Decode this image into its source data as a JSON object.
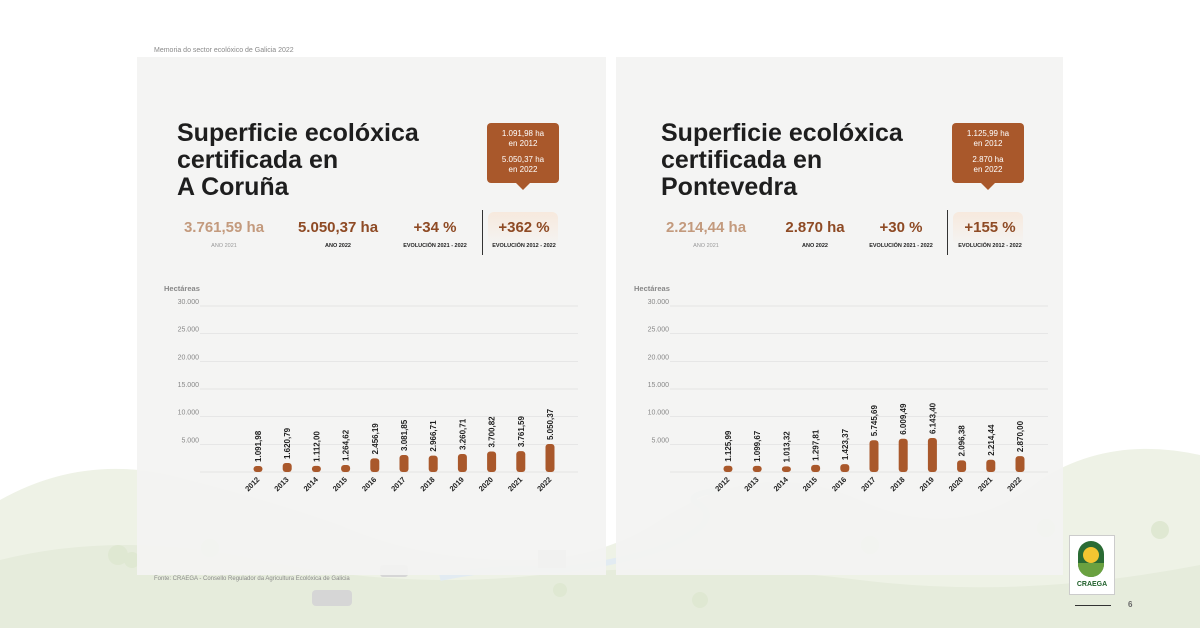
{
  "header": {
    "doc_title": "Memoria do sector ecolóxico de Galicia 2022"
  },
  "colors": {
    "bar": "#a9582b",
    "accent": "#8e4a24",
    "muted": "#c39a7d",
    "panel": "#f3f3f2"
  },
  "left": {
    "title_lines": [
      "Superficie ecolóxica",
      "certificada en",
      "A Coruña"
    ],
    "callout": {
      "line1": "1.091,98 ha",
      "line2": "en 2012",
      "line3": "5.050,37 ha",
      "line4": "en 2022"
    },
    "kpis": [
      {
        "value": "3.761,59 ha",
        "label": "ANO 2021"
      },
      {
        "value": "5.050,37 ha",
        "label": "ANO 2022"
      },
      {
        "value": "+34 %",
        "label": "EVOLUCIÓN 2021 - 2022"
      },
      {
        "value": "+362 %",
        "label": "EVOLUCIÓN 2012 - 2022"
      }
    ]
  },
  "right": {
    "title_lines": [
      "Superficie ecolóxica",
      "certificada en",
      "Pontevedra"
    ],
    "callout": {
      "line1": "1.125,99 ha",
      "line2": "en 2012",
      "line3": "2.870 ha",
      "line4": "en 2022"
    },
    "kpis": [
      {
        "value": "2.214,44 ha",
        "label": "ANO 2021"
      },
      {
        "value": "2.870 ha",
        "label": "ANO 2022"
      },
      {
        "value": "+30 %",
        "label": "EVOLUCIÓN 2021 - 2022"
      },
      {
        "value": "+155 %",
        "label": "EVOLUCIÓN 2012 - 2022"
      }
    ]
  },
  "chart_data": [
    {
      "type": "bar",
      "ylabel": "Hectáreas",
      "ylim": [
        0,
        30000
      ],
      "yticks": [
        "5.000",
        "10.000",
        "15.000",
        "20.000",
        "25.000",
        "30.000"
      ],
      "ytick_values": [
        5000,
        10000,
        15000,
        20000,
        25000,
        30000
      ],
      "categories": [
        "2012",
        "2013",
        "2014",
        "2015",
        "2016",
        "2017",
        "2018",
        "2019",
        "2020",
        "2021",
        "2022"
      ],
      "values": [
        1091.98,
        1620.79,
        1112.0,
        1264.62,
        2456.19,
        3081.85,
        2966.71,
        3260.71,
        3700.82,
        3761.59,
        5050.37
      ],
      "value_labels": [
        "1.091,98",
        "1.620,79",
        "1.112,00",
        "1.264,62",
        "2.456,19",
        "3.081,85",
        "2.966,71",
        "3.260,71",
        "3.700,82",
        "3.761,59",
        "5.050,37"
      ],
      "grid": true
    },
    {
      "type": "bar",
      "ylabel": "Hectáreas",
      "ylim": [
        0,
        30000
      ],
      "yticks": [
        "5.000",
        "10.000",
        "15.000",
        "20.000",
        "25.000",
        "30.000"
      ],
      "ytick_values": [
        5000,
        10000,
        15000,
        20000,
        25000,
        30000
      ],
      "categories": [
        "2012",
        "2013",
        "2014",
        "2015",
        "2016",
        "2017",
        "2018",
        "2019",
        "2020",
        "2021",
        "2022"
      ],
      "values": [
        1125.99,
        1099.67,
        1013.32,
        1297.81,
        1423.37,
        5745.69,
        6009.49,
        6143.4,
        2096.38,
        2214.44,
        2870.0
      ],
      "value_labels": [
        "1.125,99",
        "1.099,67",
        "1.013,32",
        "1.297,81",
        "1.423,37",
        "5.745,69",
        "6.009,49",
        "6.143,40",
        "2.096,38",
        "2.214,44",
        "2.870,00"
      ],
      "grid": true
    }
  ],
  "footer": {
    "source": "Fonte: CRAEGA - Consello Regulador da Agricultura Ecolóxica de Galicia",
    "logo_text": "CRAEGA",
    "page_number": "6"
  }
}
